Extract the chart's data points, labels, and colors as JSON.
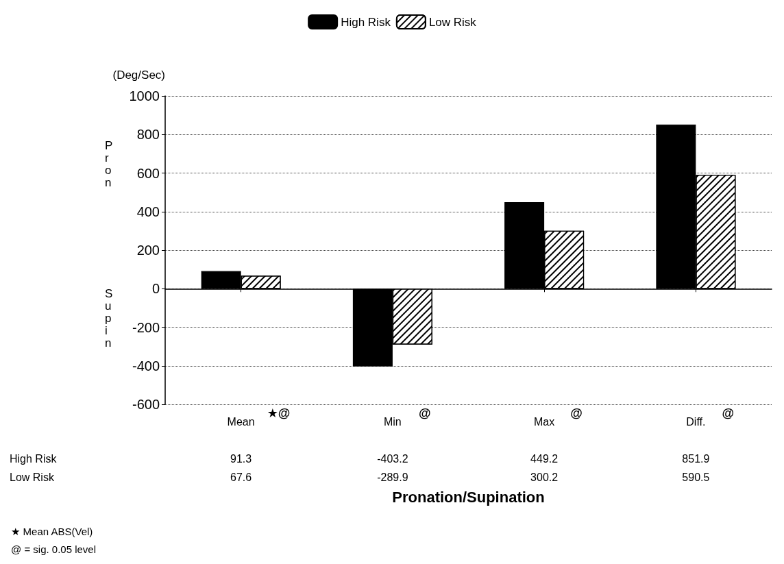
{
  "chart_data": {
    "type": "bar",
    "xlabel": "Pronation/Supination",
    "ylabel": "(Deg/Sec)",
    "categories": [
      "Mean",
      "Min",
      "Max",
      "Diff."
    ],
    "series": [
      {
        "name": "High Risk",
        "color": "#000000",
        "values": [
          91.3,
          -403.2,
          449.2,
          851.9
        ]
      },
      {
        "name": "Low Risk",
        "color": "#ffffff",
        "values": [
          67.6,
          -289.9,
          300.2,
          590.5
        ]
      }
    ],
    "ylim": [
      -600,
      1000
    ],
    "yticks": [
      -600,
      -400,
      -200,
      0,
      200,
      400,
      600,
      800,
      1000
    ],
    "grid": "y",
    "legend": "top",
    "data_labels": true,
    "annotations": [
      "★@",
      "@",
      "@",
      "@",
      "Pron",
      "Supin",
      "★ Mean ABS(Vel)",
      "@ = sig. 0.05 level"
    ]
  }
}
